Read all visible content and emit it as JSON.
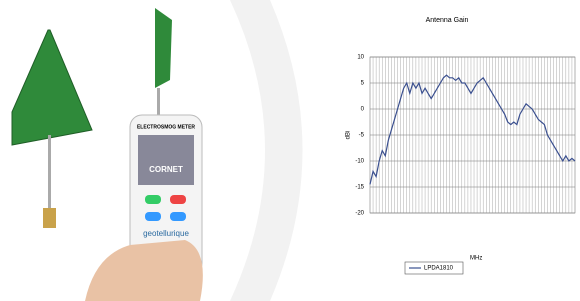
{
  "chart_data": {
    "type": "line",
    "title": "Antenna Gain",
    "y_label": "dBi",
    "x_label": "MHz",
    "categories": [
      null,
      null,
      null,
      null,
      null,
      null,
      null,
      null,
      null,
      null,
      null,
      null,
      null,
      null,
      null,
      null,
      null,
      null,
      null,
      null,
      null,
      null,
      null,
      null,
      null,
      null,
      null,
      null,
      null,
      null,
      null,
      null,
      null,
      null,
      null,
      null,
      null,
      null,
      null,
      null,
      null,
      null,
      null,
      null,
      null,
      null,
      null,
      null,
      null,
      null,
      null,
      null,
      null,
      null,
      null,
      null,
      null,
      null,
      null,
      null,
      null,
      null,
      null,
      null,
      null,
      null,
      null,
      null
    ],
    "series": [
      {
        "name": "LPDA1810",
        "color": "#3a4f8f",
        "values": [
          -14.5,
          -12,
          -13,
          -10,
          -8,
          -9,
          -6,
          -4,
          -2,
          0,
          2,
          4,
          5,
          3,
          5,
          4,
          5,
          3,
          4,
          3,
          2,
          3,
          4,
          5,
          6,
          6.5,
          6,
          6,
          5.5,
          6,
          5,
          5,
          4,
          3,
          4,
          5,
          5.5,
          6,
          5,
          4,
          3,
          2,
          1,
          0,
          -1,
          -2.5,
          -3,
          -2.5,
          -3,
          -1,
          0,
          1,
          0.5,
          0,
          -1,
          -2,
          -2.5,
          -3,
          -5,
          -6,
          -7,
          -8,
          -9,
          -10,
          -9,
          -10,
          -9.5,
          -10
        ]
      }
    ],
    "ylim": [
      -20,
      10
    ],
    "yticks": [
      -20,
      -15,
      -10,
      -5,
      0,
      5,
      10
    ],
    "grid": true,
    "legend": "bottom"
  },
  "photo": {
    "labels": [
      "ELECTROSMOG METER",
      "CORNET",
      "geotellurique"
    ]
  }
}
